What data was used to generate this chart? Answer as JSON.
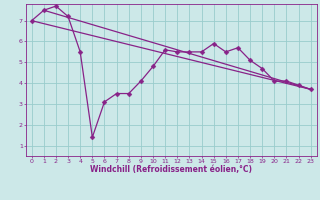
{
  "xlabel": "Windchill (Refroidissement éolien,°C)",
  "background_color": "#cce8e8",
  "line_color": "#882288",
  "grid_color": "#99cccc",
  "xlim": [
    -0.5,
    23.5
  ],
  "ylim": [
    0.5,
    7.8
  ],
  "xticks": [
    0,
    1,
    2,
    3,
    4,
    5,
    6,
    7,
    8,
    9,
    10,
    11,
    12,
    13,
    14,
    15,
    16,
    17,
    18,
    19,
    20,
    21,
    22,
    23
  ],
  "yticks": [
    1,
    2,
    3,
    4,
    5,
    6,
    7
  ],
  "curve1_x": [
    0,
    1,
    2,
    3,
    4,
    5,
    6,
    7,
    8,
    9,
    10,
    11,
    12,
    13,
    14,
    15,
    16,
    17,
    18,
    19,
    20,
    21,
    22,
    23
  ],
  "curve1_y": [
    7.0,
    7.5,
    7.7,
    7.2,
    5.5,
    1.4,
    3.1,
    3.5,
    3.5,
    4.1,
    4.8,
    5.6,
    5.5,
    5.5,
    5.5,
    5.9,
    5.5,
    5.7,
    5.1,
    4.7,
    4.1,
    4.1,
    3.9,
    3.7
  ],
  "trend1_x": [
    0,
    23
  ],
  "trend1_y": [
    7.0,
    3.7
  ],
  "trend2_x": [
    1,
    23
  ],
  "trend2_y": [
    7.5,
    3.7
  ],
  "marker": "D",
  "markersize": 2.5,
  "linewidth": 0.9,
  "tick_fontsize": 4.5,
  "xlabel_fontsize": 5.5
}
